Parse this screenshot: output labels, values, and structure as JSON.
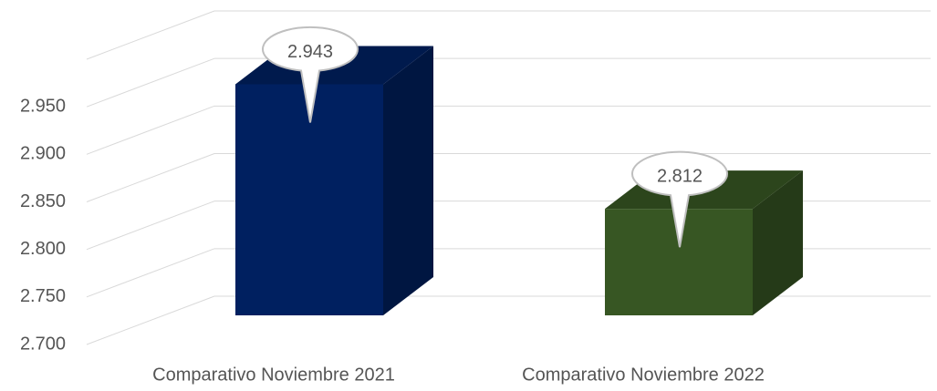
{
  "chart_data": {
    "type": "bar3d",
    "categories": [
      "Comparativo Noviembre 2021",
      "Comparativo Noviembre 2022"
    ],
    "values": [
      2.943,
      2.812
    ],
    "colors": [
      "#002060",
      "#375623"
    ],
    "ylim": [
      2.7,
      3.0
    ],
    "yticks": [
      {
        "value": 2.7,
        "label": "2.700"
      },
      {
        "value": 2.75,
        "label": "2.750"
      },
      {
        "value": 2.8,
        "label": "2.800"
      },
      {
        "value": 2.85,
        "label": "2.850"
      },
      {
        "value": 2.9,
        "label": "2.900"
      },
      {
        "value": 2.95,
        "label": "2.950"
      }
    ],
    "grid": true
  }
}
